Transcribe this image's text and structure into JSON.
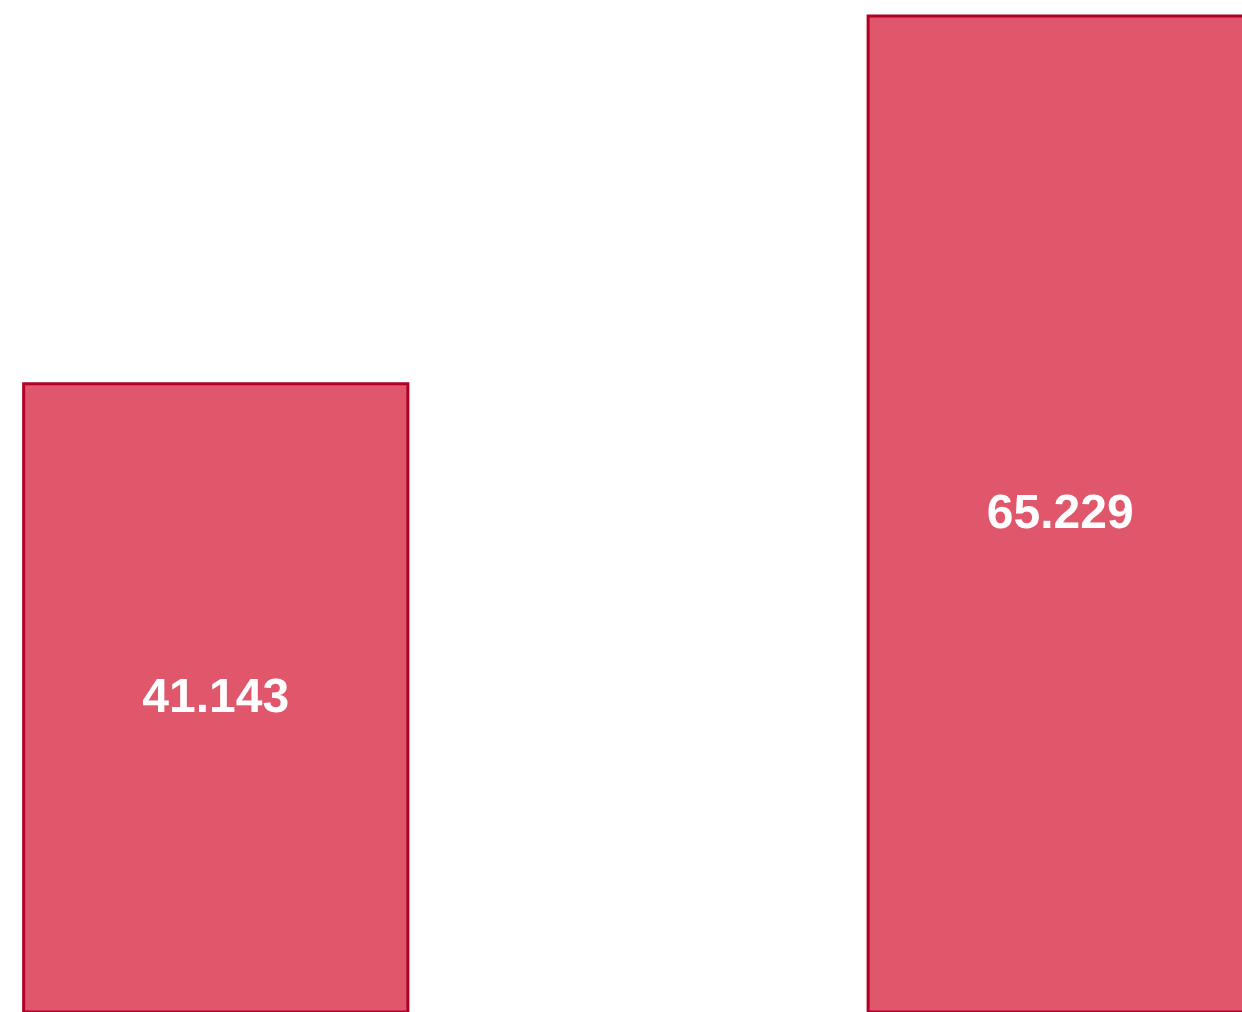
{
  "chart_data": {
    "type": "bar",
    "categories": [
      null,
      null
    ],
    "values": [
      41.143,
      65.229
    ],
    "color": "#e0566a",
    "data_labels": true
  }
}
